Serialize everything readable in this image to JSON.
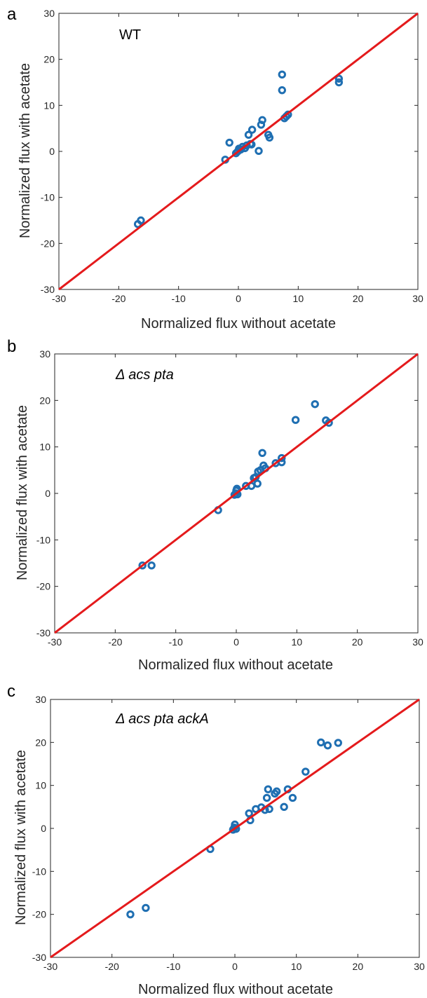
{
  "colors": {
    "marker": "#1f6fb2",
    "reference_line": "#e41a1c",
    "axis": "#262626"
  },
  "chart_data": [
    {
      "type": "scatter",
      "panel_letter": "a",
      "annotation": "WT",
      "annotation_italic": false,
      "xlabel": "Normalized flux without acetate",
      "ylabel": "Normalized flux with acetate",
      "xlim": [
        -30,
        30
      ],
      "ylim": [
        -30,
        30
      ],
      "xticks": [
        -30,
        -20,
        -10,
        0,
        10,
        20,
        30
      ],
      "yticks": [
        -30,
        -20,
        -10,
        0,
        10,
        20,
        30
      ],
      "grid": false,
      "reference_line": {
        "x": [
          -30,
          30
        ],
        "y": [
          -30,
          30
        ]
      },
      "points": [
        {
          "x": -16.8,
          "y": -15.8
        },
        {
          "x": -16.3,
          "y": -15.0
        },
        {
          "x": -2.2,
          "y": -1.8
        },
        {
          "x": -1.5,
          "y": 1.9
        },
        {
          "x": -0.4,
          "y": -0.4
        },
        {
          "x": -0.1,
          "y": 0.0
        },
        {
          "x": 0.1,
          "y": 0.6
        },
        {
          "x": 0.4,
          "y": 0.4
        },
        {
          "x": 0.7,
          "y": 1.0
        },
        {
          "x": 1.1,
          "y": 0.7
        },
        {
          "x": 1.4,
          "y": 1.3
        },
        {
          "x": 1.7,
          "y": 3.6
        },
        {
          "x": 2.0,
          "y": 1.6
        },
        {
          "x": 2.2,
          "y": 1.5
        },
        {
          "x": 2.3,
          "y": 4.7
        },
        {
          "x": 3.4,
          "y": 0.1
        },
        {
          "x": 3.8,
          "y": 5.8
        },
        {
          "x": 4.0,
          "y": 6.8
        },
        {
          "x": 5.0,
          "y": 3.6
        },
        {
          "x": 5.2,
          "y": 3.0
        },
        {
          "x": 7.3,
          "y": 16.7
        },
        {
          "x": 7.3,
          "y": 13.3
        },
        {
          "x": 7.7,
          "y": 7.2
        },
        {
          "x": 8.0,
          "y": 7.6
        },
        {
          "x": 8.3,
          "y": 8.0
        },
        {
          "x": 16.8,
          "y": 15.8
        },
        {
          "x": 16.8,
          "y": 15.0
        }
      ]
    },
    {
      "type": "scatter",
      "panel_letter": "b",
      "annotation": "Δ acs pta",
      "annotation_italic": true,
      "xlabel": "Normalized flux without acetate",
      "ylabel": "Normalized flux with acetate",
      "xlim": [
        -30,
        30
      ],
      "ylim": [
        -30,
        30
      ],
      "xticks": [
        -30,
        -20,
        -10,
        0,
        10,
        20,
        30
      ],
      "yticks": [
        -30,
        -20,
        -10,
        0,
        10,
        20,
        30
      ],
      "grid": false,
      "reference_line": {
        "x": [
          -30,
          30
        ],
        "y": [
          -30,
          30
        ]
      },
      "points": [
        {
          "x": -15.5,
          "y": -15.5
        },
        {
          "x": -14.0,
          "y": -15.5
        },
        {
          "x": -3.0,
          "y": -3.6
        },
        {
          "x": -0.3,
          "y": -0.3
        },
        {
          "x": -0.1,
          "y": 0.0
        },
        {
          "x": 0.0,
          "y": 0.6
        },
        {
          "x": 0.1,
          "y": 1.0
        },
        {
          "x": 0.2,
          "y": -0.2
        },
        {
          "x": 1.6,
          "y": 1.6
        },
        {
          "x": 2.5,
          "y": 1.6
        },
        {
          "x": 2.9,
          "y": 3.3
        },
        {
          "x": 3.2,
          "y": 3.5
        },
        {
          "x": 3.5,
          "y": 2.1
        },
        {
          "x": 3.6,
          "y": 4.7
        },
        {
          "x": 4.0,
          "y": 5.0
        },
        {
          "x": 4.3,
          "y": 8.7
        },
        {
          "x": 4.5,
          "y": 6.0
        },
        {
          "x": 4.8,
          "y": 5.4
        },
        {
          "x": 6.5,
          "y": 6.5
        },
        {
          "x": 7.5,
          "y": 6.7
        },
        {
          "x": 7.5,
          "y": 7.6
        },
        {
          "x": 9.8,
          "y": 15.8
        },
        {
          "x": 13.0,
          "y": 19.2
        },
        {
          "x": 14.8,
          "y": 15.7
        },
        {
          "x": 15.3,
          "y": 15.2
        }
      ]
    },
    {
      "type": "scatter",
      "panel_letter": "c",
      "annotation": "Δ acs pta ackA",
      "annotation_italic": true,
      "xlabel": "Normalized flux without acetate",
      "ylabel": "Normalized flux with acetate",
      "xlim": [
        -30,
        30
      ],
      "ylim": [
        -30,
        30
      ],
      "xticks": [
        -30,
        -20,
        -10,
        0,
        10,
        20,
        30
      ],
      "yticks": [
        -30,
        -20,
        -10,
        0,
        10,
        20,
        30
      ],
      "grid": false,
      "reference_line": {
        "x": [
          -30,
          30
        ],
        "y": [
          -30,
          30
        ]
      },
      "points": [
        {
          "x": -17.0,
          "y": -20.0
        },
        {
          "x": -14.5,
          "y": -18.5
        },
        {
          "x": -4.0,
          "y": -4.8
        },
        {
          "x": -0.3,
          "y": -0.3
        },
        {
          "x": -0.1,
          "y": 0.2
        },
        {
          "x": 0.0,
          "y": 0.9
        },
        {
          "x": 0.2,
          "y": -0.1
        },
        {
          "x": 2.3,
          "y": 3.5
        },
        {
          "x": 2.5,
          "y": 1.9
        },
        {
          "x": 3.4,
          "y": 4.5
        },
        {
          "x": 4.3,
          "y": 4.9
        },
        {
          "x": 4.9,
          "y": 4.3
        },
        {
          "x": 5.2,
          "y": 7.1
        },
        {
          "x": 5.4,
          "y": 9.1
        },
        {
          "x": 5.6,
          "y": 4.5
        },
        {
          "x": 6.5,
          "y": 8.1
        },
        {
          "x": 6.8,
          "y": 8.6
        },
        {
          "x": 8.0,
          "y": 5.0
        },
        {
          "x": 8.6,
          "y": 9.1
        },
        {
          "x": 9.4,
          "y": 7.1
        },
        {
          "x": 11.5,
          "y": 13.2
        },
        {
          "x": 14.0,
          "y": 20.0
        },
        {
          "x": 15.1,
          "y": 19.3
        },
        {
          "x": 16.8,
          "y": 19.9
        }
      ]
    }
  ]
}
